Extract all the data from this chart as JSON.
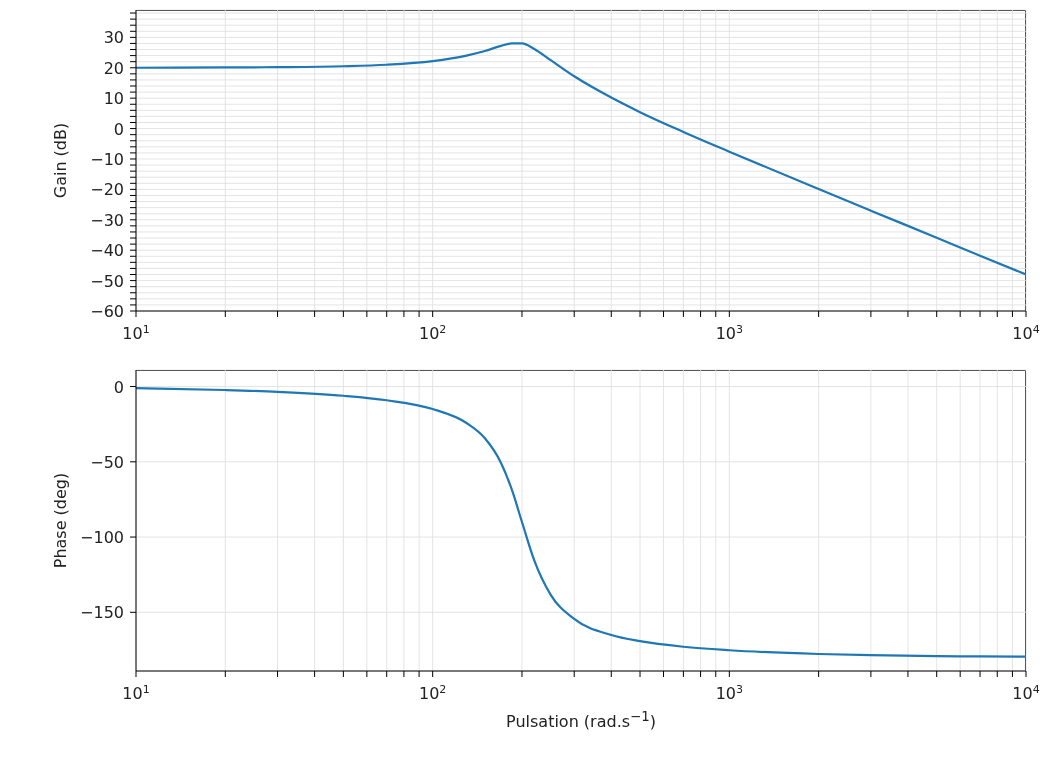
{
  "chart_data": [
    {
      "type": "line",
      "ylabel": "Gain (dB)",
      "log": "x",
      "grid": true,
      "x": [
        10,
        20,
        30,
        50,
        70,
        100,
        130,
        150,
        170,
        185,
        200,
        220,
        250,
        300,
        400,
        500,
        700,
        1000,
        2000,
        3000,
        5000,
        7000,
        10000
      ],
      "series": [
        {
          "color": "#1f77b4",
          "values": [
            20.0,
            20.1,
            20.2,
            20.5,
            21.0,
            22.2,
            24.0,
            25.5,
            27.2,
            28.0,
            28.0,
            26.2,
            22.5,
            17.2,
            10.2,
            5.4,
            -1.1,
            -7.6,
            -19.9,
            -27.0,
            -35.9,
            -41.8,
            -48.0
          ]
        }
      ],
      "xlim": [
        10,
        10000
      ],
      "ylim": [
        -60,
        39
      ],
      "xticks": [
        {
          "value": 10,
          "label": "10$^{1}$"
        },
        {
          "value": 20,
          "label": null
        },
        {
          "value": 30,
          "label": null
        },
        {
          "value": 40,
          "label": null
        },
        {
          "value": 50,
          "label": null
        },
        {
          "value": 60,
          "label": null
        },
        {
          "value": 70,
          "label": null
        },
        {
          "value": 80,
          "label": null
        },
        {
          "value": 90,
          "label": null
        },
        {
          "value": 100,
          "label": "10$^{2}$"
        },
        {
          "value": 200,
          "label": null
        },
        {
          "value": 300,
          "label": null
        },
        {
          "value": 400,
          "label": null
        },
        {
          "value": 500,
          "label": null
        },
        {
          "value": 600,
          "label": null
        },
        {
          "value": 700,
          "label": null
        },
        {
          "value": 800,
          "label": null
        },
        {
          "value": 900,
          "label": null
        },
        {
          "value": 1000,
          "label": "10$^{3}$"
        },
        {
          "value": 2000,
          "label": null
        },
        {
          "value": 3000,
          "label": null
        },
        {
          "value": 4000,
          "label": null
        },
        {
          "value": 5000,
          "label": null
        },
        {
          "value": 6000,
          "label": null
        },
        {
          "value": 7000,
          "label": null
        },
        {
          "value": 8000,
          "label": null
        },
        {
          "value": 9000,
          "label": null
        },
        {
          "value": 10000,
          "label": "10$^{4}$"
        }
      ],
      "yticks": [
        {
          "value": -60,
          "label": "−60"
        },
        {
          "value": -58,
          "label": null
        },
        {
          "value": -56,
          "label": null
        },
        {
          "value": -54,
          "label": null
        },
        {
          "value": -52,
          "label": null
        },
        {
          "value": -50,
          "label": "−50"
        },
        {
          "value": -48,
          "label": null
        },
        {
          "value": -46,
          "label": null
        },
        {
          "value": -44,
          "label": null
        },
        {
          "value": -42,
          "label": null
        },
        {
          "value": -40,
          "label": "−40"
        },
        {
          "value": -38,
          "label": null
        },
        {
          "value": -36,
          "label": null
        },
        {
          "value": -34,
          "label": null
        },
        {
          "value": -32,
          "label": null
        },
        {
          "value": -30,
          "label": "−30"
        },
        {
          "value": -28,
          "label": null
        },
        {
          "value": -26,
          "label": null
        },
        {
          "value": -24,
          "label": null
        },
        {
          "value": -22,
          "label": null
        },
        {
          "value": -20,
          "label": "−20"
        },
        {
          "value": -18,
          "label": null
        },
        {
          "value": -16,
          "label": null
        },
        {
          "value": -14,
          "label": null
        },
        {
          "value": -12,
          "label": null
        },
        {
          "value": -10,
          "label": "−10"
        },
        {
          "value": -8,
          "label": null
        },
        {
          "value": -6,
          "label": null
        },
        {
          "value": -4,
          "label": null
        },
        {
          "value": -2,
          "label": null
        },
        0,
        {
          "value": 2,
          "label": null
        },
        {
          "value": 4,
          "label": null
        },
        {
          "value": 6,
          "label": null
        },
        {
          "value": 8,
          "label": null
        },
        10,
        {
          "value": 12,
          "label": null
        },
        {
          "value": 14,
          "label": null
        },
        {
          "value": 16,
          "label": null
        },
        {
          "value": 18,
          "label": null
        },
        20,
        {
          "value": 22,
          "label": null
        },
        {
          "value": 24,
          "label": null
        },
        {
          "value": 26,
          "label": null
        },
        {
          "value": 28,
          "label": null
        },
        30,
        {
          "value": 32,
          "label": null
        },
        {
          "value": 34,
          "label": null
        },
        {
          "value": 36,
          "label": null
        },
        {
          "value": 38,
          "label": null
        }
      ]
    },
    {
      "type": "line",
      "ylabel": "Phase (deg)",
      "xlabel": "Pulsation (rad.s$^{−1}$)",
      "log": "x",
      "grid": true,
      "x": [
        10,
        20,
        30,
        50,
        70,
        100,
        130,
        150,
        170,
        185,
        200,
        220,
        250,
        300,
        400,
        500,
        700,
        1000,
        2000,
        3000,
        5000,
        7000,
        10000
      ],
      "series": [
        {
          "color": "#1f77b4",
          "values": [
            -1.1,
            -2.3,
            -3.5,
            -6.1,
            -9.1,
            -14.9,
            -24.2,
            -34.4,
            -50.8,
            -68.7,
            -90,
            -115.5,
            -138.4,
            -154.4,
            -165.1,
            -169.2,
            -172.9,
            -175.2,
            -177.7,
            -178.5,
            -179.1,
            -179.3,
            -179.5
          ]
        }
      ],
      "xlim": [
        10,
        10000
      ],
      "ylim": [
        -189,
        11
      ],
      "xticks": [
        {
          "value": 10,
          "label": "10$^{1}$"
        },
        {
          "value": 20,
          "label": null
        },
        {
          "value": 30,
          "label": null
        },
        {
          "value": 40,
          "label": null
        },
        {
          "value": 50,
          "label": null
        },
        {
          "value": 60,
          "label": null
        },
        {
          "value": 70,
          "label": null
        },
        {
          "value": 80,
          "label": null
        },
        {
          "value": 90,
          "label": null
        },
        {
          "value": 100,
          "label": "10$^{2}$"
        },
        {
          "value": 200,
          "label": null
        },
        {
          "value": 300,
          "label": null
        },
        {
          "value": 400,
          "label": null
        },
        {
          "value": 500,
          "label": null
        },
        {
          "value": 600,
          "label": null
        },
        {
          "value": 700,
          "label": null
        },
        {
          "value": 800,
          "label": null
        },
        {
          "value": 900,
          "label": null
        },
        {
          "value": 1000,
          "label": "10$^{3}$"
        },
        {
          "value": 2000,
          "label": null
        },
        {
          "value": 3000,
          "label": null
        },
        {
          "value": 4000,
          "label": null
        },
        {
          "value": 5000,
          "label": null
        },
        {
          "value": 6000,
          "label": null
        },
        {
          "value": 7000,
          "label": null
        },
        {
          "value": 8000,
          "label": null
        },
        {
          "value": 9000,
          "label": null
        },
        {
          "value": 10000,
          "label": "10$^{4}$"
        }
      ],
      "yticks": [
        {
          "value": -150,
          "label": "−150"
        },
        {
          "value": -100,
          "label": "−100"
        },
        {
          "value": -50,
          "label": "−50"
        },
        0
      ]
    }
  ]
}
